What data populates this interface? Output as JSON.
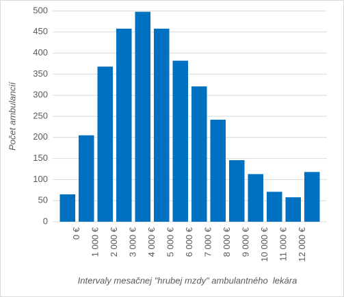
{
  "chart_data": {
    "type": "bar",
    "values": [
      65,
      205,
      368,
      458,
      498,
      458,
      382,
      321,
      242,
      146,
      113,
      71,
      58,
      118
    ],
    "color": "#0070c0",
    "xticks": [
      "0 €",
      "1 000 €",
      "2 000 €",
      "3 000 €",
      "4 000 €",
      "5 000 €",
      "6 000 €",
      "7 000 €",
      "8 000 €",
      "9 000 €",
      "10 000 €",
      "11 000 €",
      "12 000 €"
    ],
    "ylim": [
      0,
      500
    ],
    "yticks": [
      0,
      50,
      100,
      150,
      200,
      250,
      300,
      350,
      400,
      450,
      500
    ],
    "grid": true,
    "ylabel": "Počet ambulancií",
    "xlabel": "Intervaly mesačnej \"hrubej mzdy\" ambulantného  lekára"
  }
}
